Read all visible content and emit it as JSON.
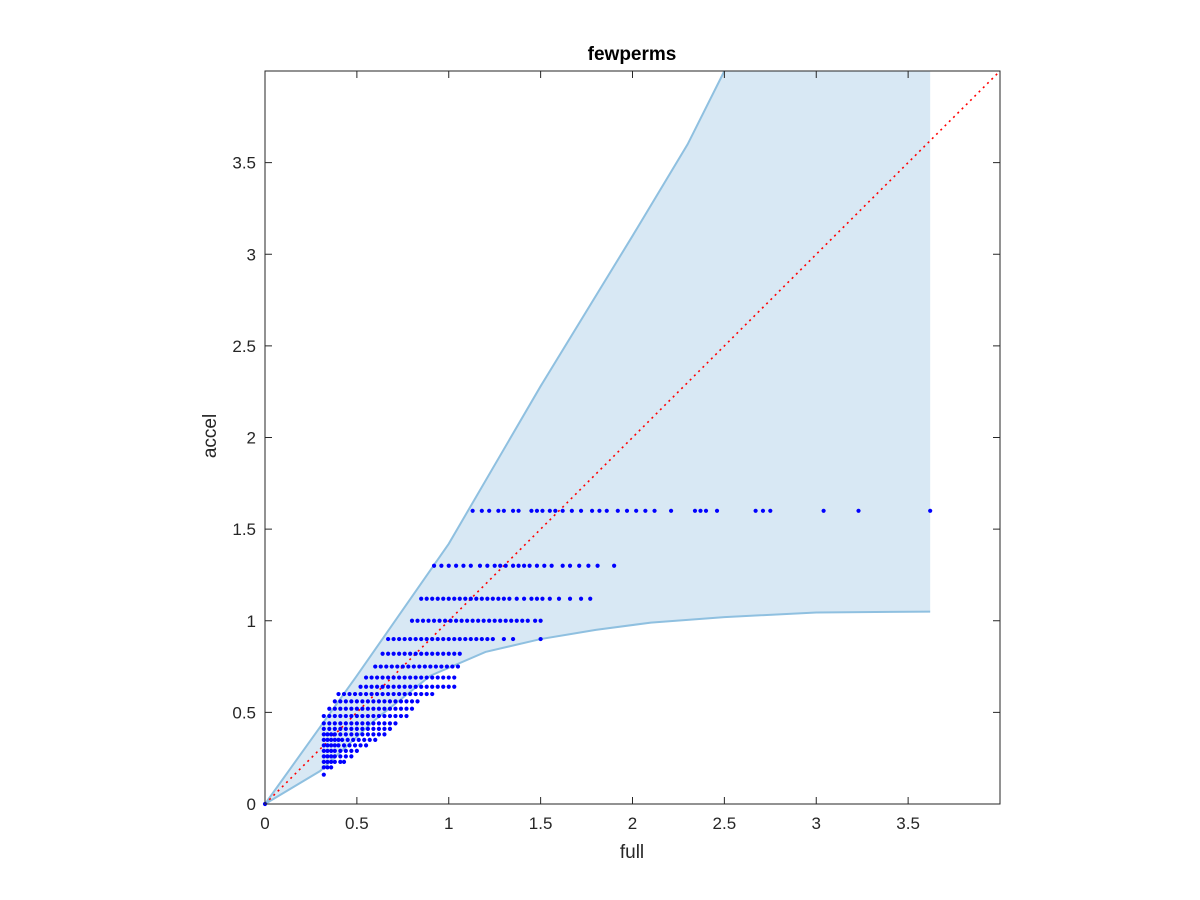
{
  "chart_data": {
    "type": "scatter",
    "title": "fewperms",
    "xlabel": "full",
    "ylabel": "accel",
    "xlim": [
      0,
      4
    ],
    "ylim": [
      0,
      4
    ],
    "xticks": [
      0,
      0.5,
      1,
      1.5,
      2,
      2.5,
      3,
      3.5
    ],
    "yticks": [
      0,
      0.5,
      1,
      1.5,
      2,
      2.5,
      3,
      3.5
    ],
    "grid": false,
    "box": true,
    "colors": {
      "points": "#0000ff",
      "band_fill": "#d8e8f4",
      "band_edge": "#8fc0e0",
      "reference_line": "#ff0000",
      "axes": "#262626"
    },
    "reference_line": {
      "style": "dotted",
      "from": [
        0,
        0
      ],
      "to": [
        4,
        4
      ]
    },
    "band": {
      "upper": [
        [
          0,
          0
        ],
        [
          0.5,
          0.7
        ],
        [
          1,
          1.42
        ],
        [
          1.5,
          2.28
        ],
        [
          2,
          3.1
        ],
        [
          2.3,
          3.6
        ],
        [
          2.5,
          4
        ]
      ],
      "upper_right_edge": [
        [
          2.5,
          4
        ],
        [
          3.62,
          4
        ]
      ],
      "lower": [
        [
          0,
          0
        ],
        [
          0.3,
          0.18
        ],
        [
          0.6,
          0.46
        ],
        [
          0.9,
          0.7
        ],
        [
          1.2,
          0.83
        ],
        [
          1.5,
          0.9
        ],
        [
          1.8,
          0.95
        ],
        [
          2.1,
          0.99
        ],
        [
          2.5,
          1.02
        ],
        [
          3,
          1.045
        ],
        [
          3.62,
          1.05
        ]
      ]
    },
    "series": [
      {
        "y": 1.6,
        "x": [
          1.13,
          1.18,
          1.22,
          1.27,
          1.3,
          1.35,
          1.38,
          1.45,
          1.48,
          1.51,
          1.55,
          1.58,
          1.62,
          1.67,
          1.72,
          1.78,
          1.82,
          1.86,
          1.92,
          1.97,
          2.02,
          2.07,
          2.12,
          2.21,
          2.34,
          2.37,
          2.4,
          2.46,
          2.67,
          2.71,
          2.75,
          3.04,
          3.23,
          3.62
        ]
      },
      {
        "y": 1.3,
        "x": [
          0.92,
          0.96,
          1.0,
          1.04,
          1.08,
          1.12,
          1.17,
          1.21,
          1.25,
          1.28,
          1.31,
          1.35,
          1.38,
          1.41,
          1.44,
          1.48,
          1.52,
          1.56,
          1.62,
          1.66,
          1.71,
          1.76,
          1.81,
          1.9
        ]
      },
      {
        "y": 1.12,
        "x": [
          0.85,
          0.88,
          0.91,
          0.94,
          0.97,
          1.0,
          1.03,
          1.06,
          1.09,
          1.12,
          1.15,
          1.18,
          1.21,
          1.24,
          1.27,
          1.3,
          1.33,
          1.37,
          1.41,
          1.45,
          1.48,
          1.51,
          1.55,
          1.6,
          1.66,
          1.72,
          1.77
        ]
      },
      {
        "y": 1.0,
        "x": [
          0.8,
          0.83,
          0.86,
          0.89,
          0.92,
          0.95,
          0.98,
          1.01,
          1.04,
          1.07,
          1.1,
          1.13,
          1.16,
          1.19,
          1.22,
          1.25,
          1.28,
          1.31,
          1.34,
          1.37,
          1.4,
          1.43,
          1.47,
          1.5
        ]
      },
      {
        "y": 0.9,
        "x": [
          0.67,
          0.7,
          0.73,
          0.76,
          0.79,
          0.82,
          0.85,
          0.88,
          0.91,
          0.94,
          0.97,
          1.0,
          1.03,
          1.06,
          1.09,
          1.12,
          1.15,
          1.18,
          1.21,
          1.24,
          1.3,
          1.35,
          1.5
        ]
      },
      {
        "y": 0.82,
        "x": [
          0.64,
          0.67,
          0.7,
          0.73,
          0.76,
          0.79,
          0.82,
          0.85,
          0.88,
          0.91,
          0.94,
          0.97,
          1.0,
          1.03,
          1.06
        ]
      },
      {
        "y": 0.75,
        "x": [
          0.6,
          0.63,
          0.66,
          0.69,
          0.72,
          0.75,
          0.78,
          0.81,
          0.84,
          0.87,
          0.9,
          0.93,
          0.96,
          0.99,
          1.02,
          1.05
        ]
      },
      {
        "y": 0.69,
        "x": [
          0.55,
          0.58,
          0.61,
          0.64,
          0.67,
          0.7,
          0.73,
          0.76,
          0.79,
          0.82,
          0.85,
          0.88,
          0.91,
          0.94,
          0.97,
          1.0,
          1.03
        ]
      },
      {
        "y": 0.64,
        "x": [
          0.52,
          0.55,
          0.58,
          0.61,
          0.64,
          0.67,
          0.7,
          0.73,
          0.76,
          0.79,
          0.82,
          0.85,
          0.88,
          0.91,
          0.94,
          0.97,
          1.0,
          1.03
        ]
      },
      {
        "y": 0.6,
        "x": [
          0.4,
          0.43,
          0.46,
          0.49,
          0.52,
          0.55,
          0.58,
          0.61,
          0.64,
          0.67,
          0.7,
          0.73,
          0.76,
          0.79,
          0.82,
          0.85,
          0.88,
          0.91
        ]
      },
      {
        "y": 0.56,
        "x": [
          0.38,
          0.41,
          0.44,
          0.47,
          0.5,
          0.53,
          0.56,
          0.59,
          0.62,
          0.65,
          0.68,
          0.71,
          0.74,
          0.77,
          0.8,
          0.83
        ]
      },
      {
        "y": 0.52,
        "x": [
          0.35,
          0.38,
          0.41,
          0.44,
          0.47,
          0.5,
          0.53,
          0.56,
          0.59,
          0.62,
          0.65,
          0.68,
          0.71,
          0.74,
          0.77,
          0.8
        ]
      },
      {
        "y": 0.48,
        "x": [
          0.32,
          0.35,
          0.38,
          0.41,
          0.44,
          0.47,
          0.5,
          0.53,
          0.56,
          0.59,
          0.62,
          0.65,
          0.68,
          0.71,
          0.74,
          0.77
        ]
      },
      {
        "y": 0.44,
        "x": [
          0.32,
          0.35,
          0.38,
          0.41,
          0.44,
          0.47,
          0.5,
          0.53,
          0.56,
          0.59,
          0.62,
          0.65,
          0.68,
          0.71
        ]
      },
      {
        "y": 0.41,
        "x": [
          0.32,
          0.35,
          0.38,
          0.41,
          0.44,
          0.47,
          0.5,
          0.53,
          0.56,
          0.59,
          0.62,
          0.65,
          0.68
        ]
      },
      {
        "y": 0.38,
        "x": [
          0.32,
          0.34,
          0.36,
          0.38,
          0.41,
          0.44,
          0.47,
          0.5,
          0.53,
          0.56,
          0.59,
          0.62,
          0.65
        ]
      },
      {
        "y": 0.35,
        "x": [
          0.32,
          0.34,
          0.36,
          0.38,
          0.4,
          0.42,
          0.45,
          0.48,
          0.51,
          0.54,
          0.57,
          0.6
        ]
      },
      {
        "y": 0.32,
        "x": [
          0.32,
          0.34,
          0.36,
          0.38,
          0.4,
          0.43,
          0.46,
          0.49,
          0.52,
          0.55
        ]
      },
      {
        "y": 0.29,
        "x": [
          0.32,
          0.34,
          0.36,
          0.38,
          0.41,
          0.44,
          0.47,
          0.5
        ]
      },
      {
        "y": 0.26,
        "x": [
          0.32,
          0.34,
          0.36,
          0.38,
          0.41,
          0.44,
          0.47
        ]
      },
      {
        "y": 0.23,
        "x": [
          0.32,
          0.34,
          0.36,
          0.38,
          0.41,
          0.43
        ]
      },
      {
        "y": 0.2,
        "x": [
          0.32,
          0.34,
          0.36
        ]
      },
      {
        "y": 0.16,
        "x": [
          0.32
        ]
      },
      {
        "y": 0.0,
        "x": [
          0.0
        ]
      }
    ]
  }
}
